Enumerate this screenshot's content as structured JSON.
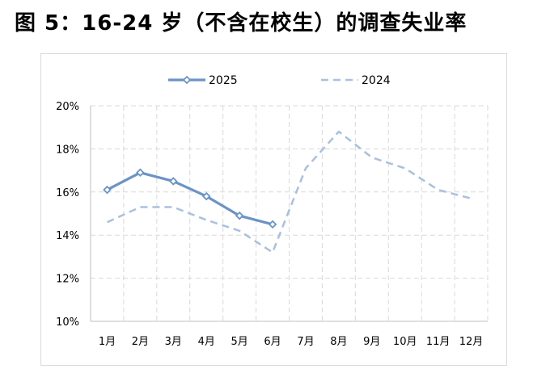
{
  "page": {
    "title": "图 5：16-24 岁（不含在校生）的调查失业率"
  },
  "chart_data": {
    "type": "line",
    "title": "图 5：16-24 岁（不含在校生）的调查失业率",
    "xlabel": "",
    "ylabel": "",
    "categories": [
      "1月",
      "2月",
      "3月",
      "4月",
      "5月",
      "6月",
      "7月",
      "8月",
      "9月",
      "10月",
      "11月",
      "12月"
    ],
    "ylim": [
      10,
      20
    ],
    "yticks": [
      10,
      12,
      14,
      16,
      18,
      20
    ],
    "ytick_labels": [
      "10%",
      "12%",
      "14%",
      "16%",
      "18%",
      "20%"
    ],
    "grid": true,
    "legend": "top",
    "series": [
      {
        "name": "2025",
        "color": "#6b93c6",
        "style": "solid-with-diamond-markers",
        "values": [
          16.1,
          16.9,
          16.5,
          15.8,
          14.9,
          14.5,
          null,
          null,
          null,
          null,
          null,
          null
        ]
      },
      {
        "name": "2024",
        "color": "#a9c0e0",
        "style": "dashed",
        "values": [
          14.6,
          15.3,
          15.3,
          14.7,
          14.2,
          13.2,
          17.1,
          18.8,
          17.6,
          17.1,
          16.1,
          15.7
        ]
      }
    ]
  }
}
